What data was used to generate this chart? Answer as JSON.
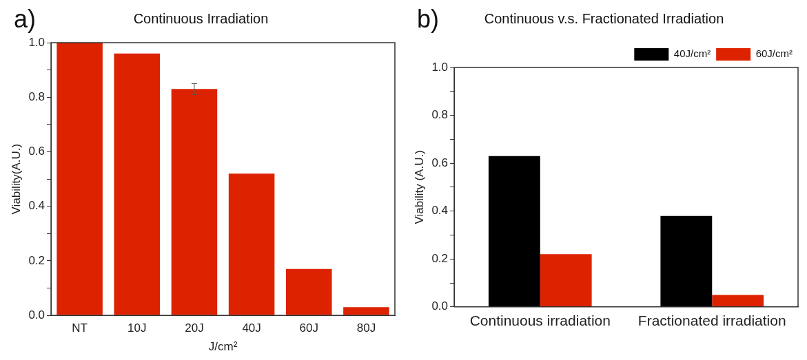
{
  "chart_data": [
    {
      "type": "bar",
      "title": "Continuous Irradiation",
      "annotations": [
        "a)"
      ],
      "xlabel": "J/cm²",
      "ylabel": "Viability(A.U.)",
      "categories": [
        "NT",
        "10J",
        "20J",
        "40J",
        "60J",
        "80J"
      ],
      "series": [
        {
          "color": "#dd2200",
          "values": [
            1.0,
            0.96,
            0.83,
            0.52,
            0.17,
            0.03
          ],
          "errors": [
            null,
            null,
            0.02,
            null,
            null,
            null
          ]
        }
      ],
      "ylim": [
        0,
        1.0
      ],
      "yticks": [
        {
          "value": 0,
          "label": "0.0"
        },
        {
          "value": 0.1,
          "label": null
        },
        0.2,
        {
          "value": 0.3,
          "label": null
        },
        0.4,
        {
          "value": 0.5,
          "label": null
        },
        0.6,
        {
          "value": 0.7,
          "label": null
        },
        0.8,
        {
          "value": 0.9,
          "label": null
        },
        {
          "value": 1,
          "label": "1.0"
        }
      ],
      "grid": false,
      "legend": false
    },
    {
      "type": "bar",
      "title": "Continuous v.s. Fractionated Irradiation",
      "annotations": [
        "b)"
      ],
      "ylabel": "Viability (A.U.)",
      "categories": [
        "Continuous irradiation",
        "Fractionated irradiation"
      ],
      "series": [
        {
          "name": "40J/cm²",
          "color": "#000000",
          "values": [
            0.63,
            0.38
          ]
        },
        {
          "name": "60J/cm²",
          "color": "#dd2200",
          "values": [
            0.22,
            0.05
          ]
        }
      ],
      "ylim": [
        0,
        1.0
      ],
      "yticks": [
        {
          "value": 0,
          "label": "0.0"
        },
        {
          "value": 0.1,
          "label": null
        },
        0.2,
        {
          "value": 0.3,
          "label": null
        },
        0.4,
        {
          "value": 0.5,
          "label": null
        },
        0.6,
        {
          "value": 0.7,
          "label": null
        },
        0.8,
        {
          "value": 0.9,
          "label": null
        },
        {
          "value": 1,
          "label": "1.0"
        }
      ],
      "grid": false,
      "legend": "top right"
    }
  ]
}
